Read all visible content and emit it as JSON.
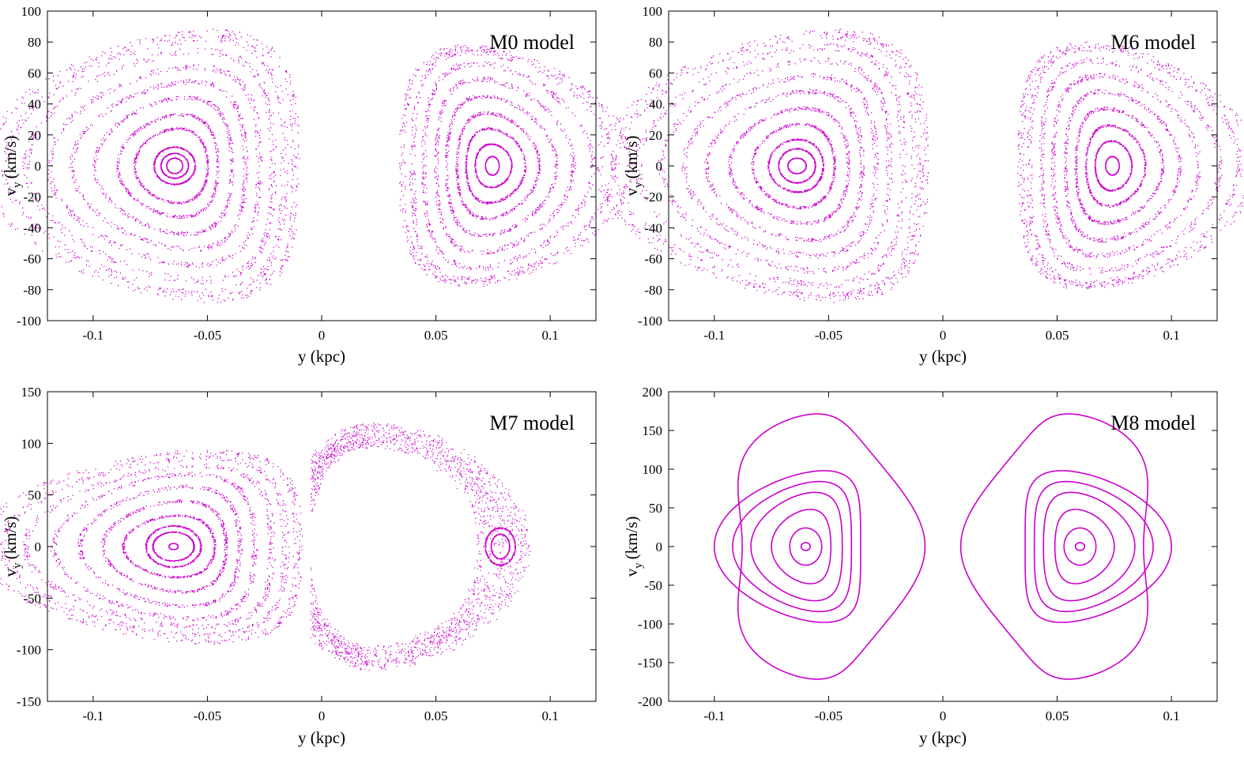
{
  "colors": {
    "points": "#cc00cc",
    "axes": "#000000"
  },
  "chart_data": [
    {
      "type": "scatter",
      "title": "M0 model",
      "xlabel": "y (kpc)",
      "ylabel": "v",
      "ylabel_sub": "y",
      "ylabel_unit": "(km/s)",
      "xlim": [
        -0.12,
        0.12
      ],
      "ylim": [
        -100,
        100
      ],
      "xticks": [
        -0.1,
        -0.05,
        0,
        0.05,
        0.1
      ],
      "xtick_labels": [
        "-0.1",
        "-0.05",
        "0",
        "0.05",
        "0.1"
      ],
      "yticks": [
        -100,
        -80,
        -60,
        -40,
        -20,
        0,
        20,
        40,
        60,
        80,
        100
      ],
      "ytick_labels": [
        "-100",
        "-80",
        "-60",
        "-40",
        "-20",
        "0",
        "20",
        "40",
        "60",
        "80",
        "100"
      ],
      "series": [
        {
          "name": "left island family",
          "center": [
            -0.0645,
            0
          ],
          "curves": [
            {
              "ax": 0.0035,
              "ay": 5,
              "skew": 0.0,
              "mode": "ring"
            },
            {
              "ax": 0.006,
              "ay": 8,
              "skew": 0.0,
              "mode": "ring"
            },
            {
              "ax": 0.009,
              "ay": 12,
              "skew": 0.0,
              "mode": "ring"
            },
            {
              "ax": 0.016,
              "ay": 24,
              "skew": 0.003,
              "mode": "ring"
            },
            {
              "ax": 0.022,
              "ay": 33,
              "skew": 0.006,
              "mode": "ring"
            },
            {
              "ax": 0.03,
              "ay": 44,
              "skew": 0.01,
              "mode": "ring"
            },
            {
              "ax": 0.038,
              "ay": 54,
              "skew": 0.014,
              "mode": "ring"
            },
            {
              "ax": 0.046,
              "ay": 64,
              "skew": 0.018,
              "mode": "ring"
            },
            {
              "ax": 0.054,
              "ay": 74,
              "skew": 0.022,
              "mode": "ring"
            },
            {
              "ax": 0.061,
              "ay": 82,
              "skew": 0.026,
              "mode": "ring"
            },
            {
              "ax": 0.068,
              "ay": 86,
              "skew": 0.03,
              "mode": "ring"
            }
          ]
        },
        {
          "name": "right island family",
          "center": [
            0.0745,
            0
          ],
          "curves": [
            {
              "ax": 0.003,
              "ay": 6,
              "skew": 0.0,
              "mode": "ring"
            },
            {
              "ax": 0.008,
              "ay": 14,
              "skew": -0.001,
              "mode": "ring"
            },
            {
              "ax": 0.013,
              "ay": 24,
              "skew": -0.003,
              "mode": "ring"
            },
            {
              "ax": 0.018,
              "ay": 34,
              "skew": -0.005,
              "mode": "ring"
            },
            {
              "ax": 0.024,
              "ay": 45,
              "skew": -0.008,
              "mode": "ring"
            },
            {
              "ax": 0.03,
              "ay": 56,
              "skew": -0.011,
              "mode": "ring"
            },
            {
              "ax": 0.037,
              "ay": 66,
              "skew": -0.014,
              "mode": "ring"
            },
            {
              "ax": 0.044,
              "ay": 74,
              "skew": -0.018,
              "mode": "ring"
            },
            {
              "ax": 0.05,
              "ay": 76,
              "skew": -0.021,
              "mode": "ring"
            }
          ]
        }
      ]
    },
    {
      "type": "scatter",
      "title": "M6 model",
      "xlabel": "y (kpc)",
      "ylabel": "v",
      "ylabel_sub": "y",
      "ylabel_unit": "(km/s)",
      "xlim": [
        -0.12,
        0.12
      ],
      "ylim": [
        -100,
        100
      ],
      "xticks": [
        -0.1,
        -0.05,
        0,
        0.05,
        0.1
      ],
      "xtick_labels": [
        "-0.1",
        "-0.05",
        "0",
        "0.05",
        "0.1"
      ],
      "yticks": [
        -100,
        -80,
        -60,
        -40,
        -20,
        0,
        20,
        40,
        60,
        80,
        100
      ],
      "ytick_labels": [
        "-100",
        "-80",
        "-60",
        "-40",
        "-20",
        "0",
        "20",
        "40",
        "60",
        "80",
        "100"
      ],
      "series": [
        {
          "name": "left island family",
          "center": [
            -0.064,
            0
          ],
          "curves": [
            {
              "ax": 0.004,
              "ay": 5,
              "skew": 0.0,
              "mode": "ring"
            },
            {
              "ax": 0.008,
              "ay": 11,
              "skew": 0.0,
              "mode": "ring"
            },
            {
              "ax": 0.012,
              "ay": 17,
              "skew": 0.001,
              "mode": "ring"
            },
            {
              "ax": 0.018,
              "ay": 27,
              "skew": 0.003,
              "mode": "ring"
            },
            {
              "ax": 0.026,
              "ay": 37,
              "skew": 0.007,
              "mode": "ring"
            },
            {
              "ax": 0.034,
              "ay": 48,
              "skew": 0.011,
              "mode": "ring"
            },
            {
              "ax": 0.042,
              "ay": 58,
              "skew": 0.015,
              "mode": "ring"
            },
            {
              "ax": 0.05,
              "ay": 68,
              "skew": 0.019,
              "mode": "ring"
            },
            {
              "ax": 0.058,
              "ay": 77,
              "skew": 0.023,
              "mode": "ring"
            },
            {
              "ax": 0.066,
              "ay": 84,
              "skew": 0.028,
              "mode": "ring"
            },
            {
              "ax": 0.071,
              "ay": 86,
              "skew": 0.031,
              "mode": "ring"
            }
          ]
        },
        {
          "name": "right island family",
          "center": [
            0.074,
            0
          ],
          "curves": [
            {
              "ax": 0.003,
              "ay": 6,
              "skew": 0.0,
              "mode": "ring"
            },
            {
              "ax": 0.008,
              "ay": 16,
              "skew": -0.001,
              "mode": "ring"
            },
            {
              "ax": 0.013,
              "ay": 26,
              "skew": -0.003,
              "mode": "ring"
            },
            {
              "ax": 0.019,
              "ay": 37,
              "skew": -0.006,
              "mode": "ring"
            },
            {
              "ax": 0.025,
              "ay": 48,
              "skew": -0.009,
              "mode": "ring"
            },
            {
              "ax": 0.032,
              "ay": 58,
              "skew": -0.012,
              "mode": "ring"
            },
            {
              "ax": 0.039,
              "ay": 68,
              "skew": -0.016,
              "mode": "ring"
            },
            {
              "ax": 0.046,
              "ay": 76,
              "skew": -0.019,
              "mode": "ring"
            },
            {
              "ax": 0.051,
              "ay": 78,
              "skew": -0.022,
              "mode": "ring"
            }
          ]
        }
      ]
    },
    {
      "type": "scatter",
      "title": "M7 model",
      "xlabel": "y (kpc)",
      "ylabel": "v",
      "ylabel_sub": "y",
      "ylabel_unit": "(km/s)",
      "xlim": [
        -0.12,
        0.12
      ],
      "ylim": [
        -150,
        150
      ],
      "xticks": [
        -0.1,
        -0.05,
        0,
        0.05,
        0.1
      ],
      "xtick_labels": [
        "-0.1",
        "-0.05",
        "0",
        "0.05",
        "0.1"
      ],
      "yticks": [
        -150,
        -100,
        -50,
        0,
        50,
        100,
        150
      ],
      "ytick_labels": [
        "-150",
        "-100",
        "-50",
        "0",
        "50",
        "100",
        "150"
      ],
      "series": [
        {
          "name": "left island family",
          "center": [
            -0.065,
            0
          ],
          "curves": [
            {
              "ax": 0.002,
              "ay": 3,
              "skew": 0.0,
              "mode": "ring"
            },
            {
              "ax": 0.009,
              "ay": 14,
              "skew": 0.0,
              "mode": "ring"
            },
            {
              "ax": 0.012,
              "ay": 20,
              "skew": 0.0,
              "mode": "ring"
            },
            {
              "ax": 0.02,
              "ay": 30,
              "skew": 0.004,
              "mode": "ring"
            },
            {
              "ax": 0.027,
              "ay": 44,
              "skew": 0.008,
              "mode": "ring"
            },
            {
              "ax": 0.035,
              "ay": 58,
              "skew": 0.012,
              "mode": "ring"
            },
            {
              "ax": 0.044,
              "ay": 70,
              "skew": 0.017,
              "mode": "ring"
            },
            {
              "ax": 0.054,
              "ay": 78,
              "skew": 0.022,
              "mode": "ring"
            },
            {
              "ax": 0.062,
              "ay": 86,
              "skew": 0.026,
              "mode": "ring"
            },
            {
              "ax": 0.07,
              "ay": 92,
              "skew": 0.031,
              "mode": "ring"
            }
          ]
        },
        {
          "name": "right island",
          "center": [
            0.078,
            0
          ],
          "curves": [
            {
              "ax": 0.004,
              "ay": 12,
              "skew": 0.0,
              "mode": "ring"
            },
            {
              "ax": 0.0065,
              "ay": 18,
              "skew": 0.0,
              "mode": "ring"
            }
          ]
        },
        {
          "name": "chaotic sea",
          "center": [
            0,
            0
          ],
          "curves": [
            {
              "ax": 0,
              "ay": 0,
              "skew": 0,
              "mode": "chaos"
            }
          ]
        }
      ]
    },
    {
      "type": "scatter",
      "title": "M8 model",
      "xlabel": "y (kpc)",
      "ylabel": "v",
      "ylabel_sub": "y",
      "ylabel_unit": "(km/s)",
      "xlim": [
        -0.12,
        0.12
      ],
      "ylim": [
        -200,
        200
      ],
      "xticks": [
        -0.1,
        -0.05,
        0,
        0.05,
        0.1
      ],
      "xtick_labels": [
        "-0.1",
        "-0.05",
        "0",
        "0.05",
        "0.1"
      ],
      "yticks": [
        -200,
        -150,
        -100,
        -50,
        0,
        50,
        100,
        150,
        200
      ],
      "ytick_labels": [
        "-200",
        "-150",
        "-100",
        "-50",
        "0",
        "50",
        "100",
        "150",
        "200"
      ],
      "series": [
        {
          "name": "left island family",
          "center": [
            -0.06,
            0
          ],
          "curves": [
            {
              "ax": 0.002,
              "ay": 5,
              "skew": 0.0,
              "mode": "line"
            },
            {
              "ax": 0.007,
              "ay": 24,
              "skew": 0.0,
              "mode": "line"
            },
            {
              "ax": 0.013,
              "ay": 48,
              "skew": 0.004,
              "mode": "line"
            },
            {
              "ax": 0.02,
              "ay": 70,
              "skew": 0.008,
              "mode": "line"
            },
            {
              "ax": 0.026,
              "ay": 84,
              "skew": 0.012,
              "mode": "line"
            },
            {
              "ax": 0.032,
              "ay": 98,
              "skew": 0.016,
              "mode": "line"
            }
          ]
        },
        {
          "name": "right island family",
          "center": [
            0.06,
            0
          ],
          "curves": [
            {
              "ax": 0.002,
              "ay": 5,
              "skew": 0.0,
              "mode": "line"
            },
            {
              "ax": 0.007,
              "ay": 24,
              "skew": 0.0,
              "mode": "line"
            },
            {
              "ax": 0.013,
              "ay": 48,
              "skew": -0.004,
              "mode": "line"
            },
            {
              "ax": 0.02,
              "ay": 70,
              "skew": -0.008,
              "mode": "line"
            },
            {
              "ax": 0.026,
              "ay": 84,
              "skew": -0.012,
              "mode": "line"
            },
            {
              "ax": 0.032,
              "ay": 98,
              "skew": -0.016,
              "mode": "line"
            }
          ]
        },
        {
          "name": "left separatrix",
          "center": [
            -0.055,
            0
          ],
          "curves": [
            {
              "ax": 0.04,
              "ay": 153,
              "skew": 0.0,
              "mode": "tri-left"
            }
          ]
        },
        {
          "name": "right separatrix",
          "center": [
            0.055,
            0
          ],
          "curves": [
            {
              "ax": 0.04,
              "ay": 153,
              "skew": 0.0,
              "mode": "tri-right"
            }
          ]
        }
      ]
    }
  ]
}
